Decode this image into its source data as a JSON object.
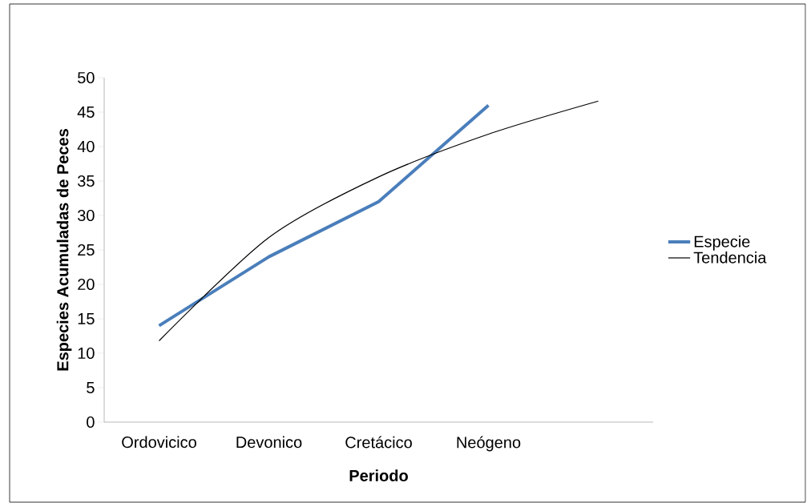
{
  "chart_data": {
    "type": "line",
    "xlabel": "Periodo",
    "ylabel": "Especies Acumuladas de Peces",
    "categories": [
      "Ordovicico",
      "Devonico",
      "Cretácico",
      "Neógeno",
      null
    ],
    "series": [
      {
        "name": "Especie",
        "color": "#4a7ebb",
        "values": [
          14,
          24,
          32,
          46,
          null
        ]
      },
      {
        "name": "Tendencia",
        "color": "#000000",
        "type": "line",
        "values": [
          11.8,
          26.8,
          35.6,
          41.8,
          46.6
        ]
      }
    ],
    "ylim": [
      0,
      50
    ],
    "yticks": [
      0,
      5,
      10,
      15,
      20,
      25,
      30,
      35,
      40,
      45,
      50
    ],
    "legend": "right",
    "grid": false,
    "marker": "none"
  }
}
